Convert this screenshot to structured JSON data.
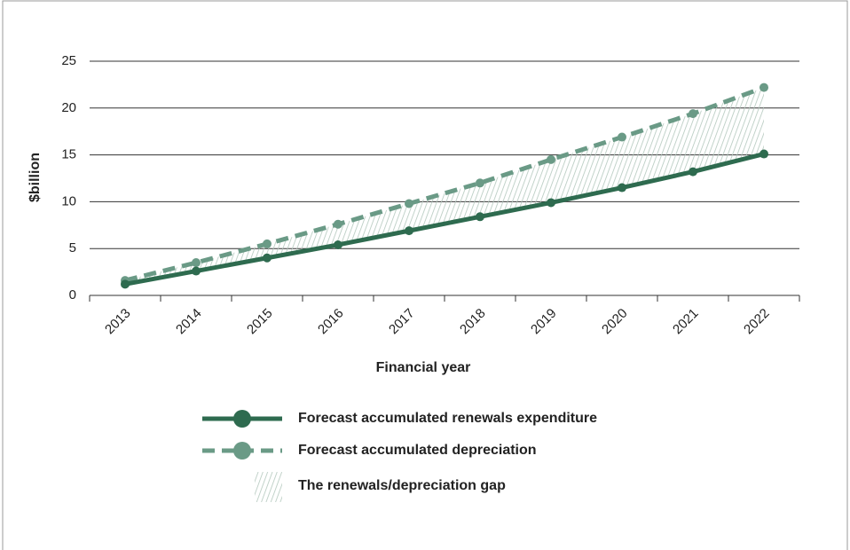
{
  "chart_data": {
    "type": "line",
    "y_label": "$billion",
    "x_label": "Financial year",
    "categories": [
      "2013",
      "2014",
      "2015",
      "2016",
      "2017",
      "2018",
      "2019",
      "2020",
      "2021",
      "2022"
    ],
    "series": [
      {
        "name": "Forecast accumulated renewals expenditure",
        "color": "#2e6b4f",
        "dashed": false,
        "values": [
          1.2,
          2.6,
          4.0,
          5.4,
          6.9,
          8.4,
          9.9,
          11.5,
          13.2,
          15.1
        ]
      },
      {
        "name": "Forecast accumulated depreciation",
        "color": "#6a9a86",
        "dashed": true,
        "values": [
          1.6,
          3.5,
          5.5,
          7.6,
          9.8,
          12.0,
          14.5,
          16.9,
          19.4,
          22.2
        ]
      }
    ],
    "gap": {
      "name": "The renewals/depreciation gap",
      "color": "#b3c8bd"
    },
    "ylim": [
      0,
      25
    ],
    "yticks": [
      0,
      5,
      10,
      15,
      20,
      25
    ],
    "grid": true
  }
}
